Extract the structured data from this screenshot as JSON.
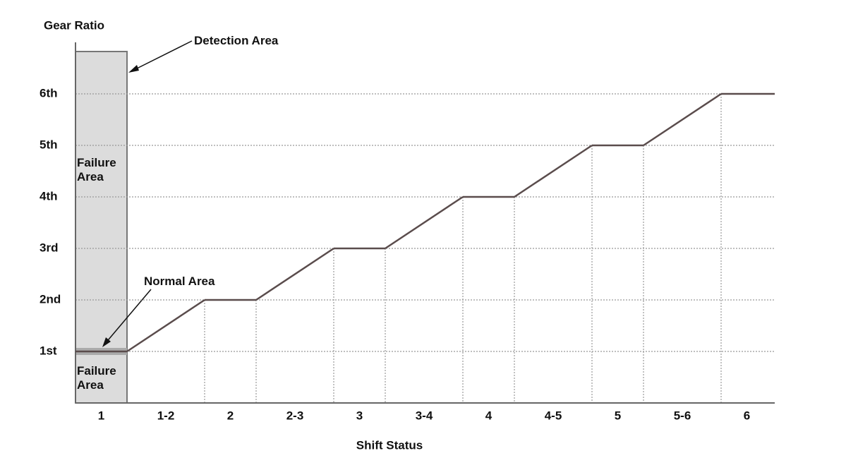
{
  "chart_data": {
    "type": "line",
    "y_label": "Gear Ratio",
    "x_label": "Shift Status",
    "annotations": [
      "Detection Area",
      "Normal Area",
      "Failure Area",
      "Failure Area"
    ],
    "categories": [
      "1",
      "1-2",
      "2",
      "2-3",
      "3",
      "3-4",
      "4",
      "4-5",
      "5",
      "5-6",
      "6"
    ],
    "values": [
      1,
      null,
      2,
      null,
      3,
      null,
      4,
      null,
      5,
      null,
      6
    ],
    "color": "#5a4c4c",
    "ylim": [
      0,
      7
    ],
    "yticks": [
      {
        "value": 1,
        "label": "1st"
      },
      {
        "value": 2,
        "label": "2nd"
      },
      {
        "value": 3,
        "label": "3rd"
      },
      {
        "value": 4,
        "label": "4th"
      },
      {
        "value": 5,
        "label": "5th"
      },
      {
        "value": 6,
        "label": "6th"
      }
    ],
    "grid": true
  }
}
